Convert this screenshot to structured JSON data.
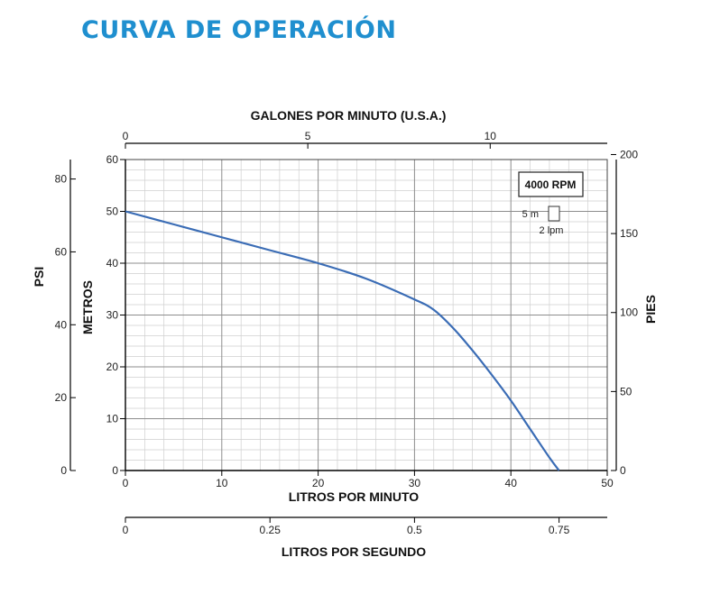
{
  "page": {
    "title": "CURVA DE OPERACIÓN"
  },
  "chart_data": {
    "type": "line",
    "title": "CURVA DE OPERACIÓN",
    "xlabel": "LITROS POR MINUTO",
    "ylabel": "METROS",
    "xlim": [
      0,
      50
    ],
    "ylim": [
      0,
      60
    ],
    "grid": true,
    "x_ticks": [
      "0",
      "10",
      "20",
      "30",
      "40",
      "50"
    ],
    "y_ticks": [
      "0",
      "10",
      "20",
      "30",
      "40",
      "50",
      "60"
    ],
    "series": [
      {
        "x": [
          0,
          5,
          10,
          15,
          20,
          25,
          30,
          32,
          34,
          36,
          38,
          40,
          42,
          44,
          45
        ],
        "y": [
          50,
          47.5,
          45,
          42.5,
          40,
          37,
          33,
          31,
          27.5,
          23.2,
          18.5,
          13.5,
          8,
          2.5,
          0
        ]
      }
    ],
    "series_color": "#3a6cb5",
    "secondary_axes": {
      "top": {
        "label": "GALONES POR MINUTO (U.S.A.)",
        "ticks": [
          {
            "value": 0,
            "label": "0"
          },
          {
            "value": 5,
            "label": "5"
          },
          {
            "value": 10,
            "label": "10"
          }
        ]
      },
      "right": {
        "label": "PIES",
        "ticks": [
          {
            "value": 0,
            "label": "0"
          },
          {
            "value": 50,
            "label": "50"
          },
          {
            "value": 100,
            "label": "100"
          },
          {
            "value": 150,
            "label": "150"
          },
          {
            "value": 200,
            "label": "200"
          }
        ]
      },
      "left_outer": {
        "label": "PSI",
        "ticks": [
          {
            "value": 0,
            "label": "0"
          },
          {
            "value": 20,
            "label": "20"
          },
          {
            "value": 40,
            "label": "40"
          },
          {
            "value": 60,
            "label": "60"
          },
          {
            "value": 80,
            "label": "80"
          }
        ]
      },
      "bottom_outer": {
        "label": "LITROS POR SEGUNDO",
        "ticks": [
          {
            "value": 0,
            "label": "0"
          },
          {
            "value": 0.25,
            "label": "0.25"
          },
          {
            "value": 0.5,
            "label": "0.5"
          },
          {
            "value": 0.75,
            "label": "0.75"
          }
        ]
      }
    },
    "legend": {
      "rpm_label": "4000 RPM",
      "scale_height_label": "5 m",
      "scale_width_label": "2 lpm",
      "placement": "top-right"
    }
  }
}
